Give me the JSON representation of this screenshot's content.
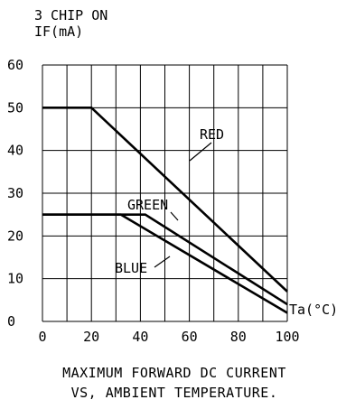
{
  "header": {
    "line1": "3 CHIP ON",
    "line2": "IF(mA)"
  },
  "caption": {
    "line1": "MAXIMUM FORWARD DC CURRENT",
    "line2": "VS, AMBIENT TEMPERATURE."
  },
  "chart_data": {
    "type": "line",
    "title": "MAXIMUM FORWARD DC CURRENT VS, AMBIENT TEMPERATURE.",
    "ylabel": "IF(mA)",
    "xlabel": "Ta(°C)",
    "xlim": [
      0,
      100
    ],
    "ylim": [
      0,
      60
    ],
    "x_ticks": [
      0,
      20,
      40,
      60,
      80,
      100
    ],
    "y_ticks": [
      0,
      10,
      20,
      30,
      40,
      50,
      60
    ],
    "grid": true,
    "series": [
      {
        "name": "RED",
        "x": [
          0,
          20,
          100
        ],
        "y": [
          50,
          50,
          7
        ]
      },
      {
        "name": "GREEN",
        "x": [
          0,
          42,
          100
        ],
        "y": [
          25,
          25,
          4
        ]
      },
      {
        "name": "BLUE",
        "x": [
          0,
          32,
          100
        ],
        "y": [
          25,
          25,
          2
        ]
      }
    ]
  }
}
